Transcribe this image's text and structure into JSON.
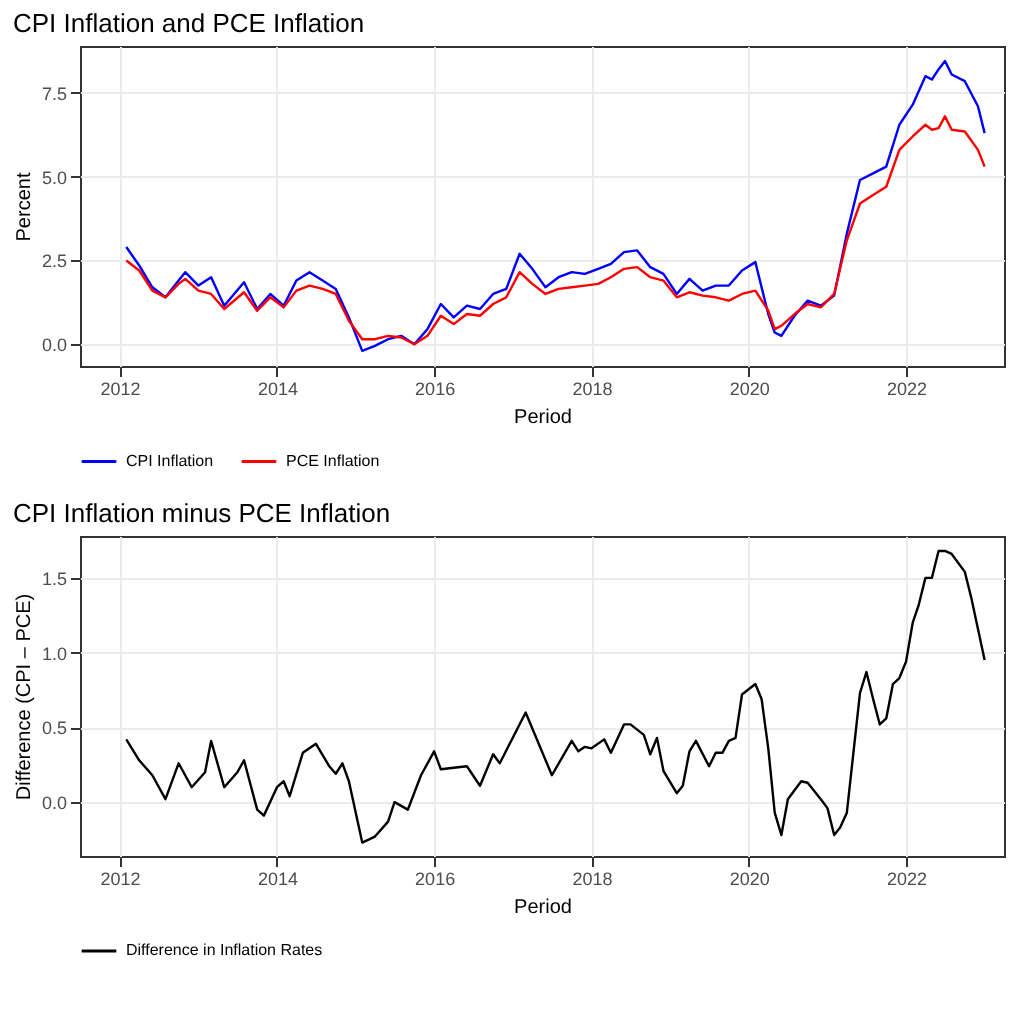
{
  "chart_data": [
    {
      "type": "line",
      "title": "CPI Inflation and PCE Inflation",
      "xlabel": "Period",
      "ylabel": "Percent",
      "x": [
        "2012-02",
        "2012-04",
        "2012-06",
        "2012-08",
        "2012-10",
        "2012-11",
        "2013-01",
        "2013-03",
        "2013-05",
        "2013-08",
        "2013-10",
        "2013-12",
        "2014-02",
        "2014-04",
        "2014-06",
        "2014-08",
        "2014-10",
        "2014-12",
        "2015-02",
        "2015-04",
        "2015-06",
        "2015-08",
        "2015-10",
        "2015-12",
        "2016-02",
        "2016-04",
        "2016-06",
        "2016-08",
        "2016-10",
        "2016-12",
        "2017-02",
        "2017-04",
        "2017-06",
        "2017-08",
        "2017-10",
        "2017-12",
        "2018-02",
        "2018-04",
        "2018-06",
        "2018-08",
        "2018-10",
        "2018-12",
        "2019-02",
        "2019-04",
        "2019-06",
        "2019-08",
        "2019-10",
        "2019-12",
        "2020-02",
        "2020-04",
        "2020-05",
        "2020-06",
        "2020-08",
        "2020-10",
        "2020-12",
        "2021-02",
        "2021-04",
        "2021-06",
        "2021-08",
        "2021-10",
        "2021-12",
        "2022-02",
        "2022-04",
        "2022-05",
        "2022-06",
        "2022-07",
        "2022-08",
        "2022-10",
        "2022-12",
        "2023-01"
      ],
      "series": [
        {
          "name": "CPI Inflation",
          "color": "#0000ff",
          "values": [
            2.9,
            2.35,
            1.7,
            1.4,
            1.9,
            2.15,
            1.75,
            2.0,
            1.15,
            1.85,
            1.05,
            1.5,
            1.15,
            1.9,
            2.15,
            1.9,
            1.65,
            0.8,
            -0.2,
            -0.05,
            0.15,
            0.25,
            0.0,
            0.45,
            1.2,
            0.8,
            1.15,
            1.05,
            1.5,
            1.65,
            2.7,
            2.25,
            1.7,
            2.0,
            2.15,
            2.1,
            2.25,
            2.4,
            2.75,
            2.8,
            2.3,
            2.1,
            1.5,
            1.95,
            1.6,
            1.75,
            1.75,
            2.2,
            2.45,
            0.9,
            0.35,
            0.25,
            0.85,
            1.3,
            1.15,
            1.45,
            3.3,
            4.9,
            5.1,
            5.3,
            6.55,
            7.15,
            8.0,
            7.9,
            8.2,
            8.45,
            8.05,
            7.85,
            7.1,
            6.3
          ]
        },
        {
          "name": "PCE Inflation",
          "color": "#ff0000",
          "values": [
            2.5,
            2.2,
            1.6,
            1.4,
            1.8,
            1.95,
            1.6,
            1.5,
            1.05,
            1.55,
            1.0,
            1.4,
            1.1,
            1.6,
            1.75,
            1.65,
            1.5,
            0.7,
            0.15,
            0.15,
            0.25,
            0.2,
            0.0,
            0.25,
            0.85,
            0.6,
            0.9,
            0.85,
            1.2,
            1.4,
            2.15,
            1.8,
            1.5,
            1.65,
            1.7,
            1.75,
            1.8,
            2.0,
            2.25,
            2.3,
            2.0,
            1.9,
            1.4,
            1.55,
            1.45,
            1.4,
            1.3,
            1.5,
            1.6,
            1.0,
            0.45,
            0.55,
            0.9,
            1.2,
            1.1,
            1.5,
            3.1,
            4.2,
            4.45,
            4.7,
            5.8,
            6.2,
            6.55,
            6.4,
            6.45,
            6.8,
            6.4,
            6.35,
            5.8,
            5.3
          ]
        }
      ],
      "xlim": [
        "2011-07",
        "2023-04"
      ],
      "xticks": [
        "2012",
        "2014",
        "2016",
        "2018",
        "2020",
        "2022"
      ],
      "ylim": [
        -0.65,
        8.9
      ],
      "yticks": [
        {
          "value": 0,
          "label": "0.0"
        },
        2.5,
        {
          "value": 5,
          "label": "5.0"
        },
        7.5
      ],
      "grid": true,
      "legend": "bottom"
    },
    {
      "type": "line",
      "title": "CPI Inflation minus PCE Inflation",
      "xlabel": "Period",
      "ylabel": "Difference (CPI – PCE)",
      "x": [
        "2012-02",
        "2012-04",
        "2012-06",
        "2012-08",
        "2012-10",
        "2012-12",
        "2013-02",
        "2013-03",
        "2013-05",
        "2013-07",
        "2013-08",
        "2013-10",
        "2013-11",
        "2014-01",
        "2014-02",
        "2014-03",
        "2014-05",
        "2014-07",
        "2014-09",
        "2014-10",
        "2014-11",
        "2014-12",
        "2015-02",
        "2015-04",
        "2015-06",
        "2015-07",
        "2015-09",
        "2015-11",
        "2016-01",
        "2016-02",
        "2016-04",
        "2016-06",
        "2016-08",
        "2016-10",
        "2016-11",
        "2017-03",
        "2017-07",
        "2017-10",
        "2017-11",
        "2017-12",
        "2018-01",
        "2018-03",
        "2018-04",
        "2018-06",
        "2018-07",
        "2018-09",
        "2018-10",
        "2018-11",
        "2018-12",
        "2019-02",
        "2019-03",
        "2019-04",
        "2019-05",
        "2019-07",
        "2019-08",
        "2019-09",
        "2019-10",
        "2019-11",
        "2019-12",
        "2020-02",
        "2020-03",
        "2020-04",
        "2020-05",
        "2020-06",
        "2020-07",
        "2020-09",
        "2020-10",
        "2020-12",
        "2021-01",
        "2021-02",
        "2021-03",
        "2021-04",
        "2021-06",
        "2021-07",
        "2021-08",
        "2021-09",
        "2021-10",
        "2021-11",
        "2021-12",
        "2022-01",
        "2022-02",
        "2022-03",
        "2022-04",
        "2022-05",
        "2022-06",
        "2022-07",
        "2022-08",
        "2022-10",
        "2022-11",
        "2023-01"
      ],
      "series": [
        {
          "name": "Difference in Inflation Rates",
          "color": "#000000",
          "values": [
            0.42,
            0.28,
            0.18,
            0.02,
            0.26,
            0.1,
            0.2,
            0.41,
            0.1,
            0.2,
            0.28,
            -0.05,
            -0.09,
            0.1,
            0.14,
            0.04,
            0.33,
            0.39,
            0.24,
            0.19,
            0.26,
            0.14,
            -0.27,
            -0.23,
            -0.13,
            0.0,
            -0.05,
            0.18,
            0.34,
            0.22,
            0.23,
            0.24,
            0.11,
            0.32,
            0.26,
            0.6,
            0.18,
            0.41,
            0.34,
            0.37,
            0.36,
            0.42,
            0.33,
            0.52,
            0.52,
            0.45,
            0.32,
            0.43,
            0.21,
            0.06,
            0.11,
            0.34,
            0.41,
            0.24,
            0.33,
            0.33,
            0.41,
            0.43,
            0.72,
            0.79,
            0.69,
            0.36,
            -0.07,
            -0.22,
            0.02,
            0.14,
            0.13,
            0.02,
            -0.04,
            -0.22,
            -0.17,
            -0.07,
            0.73,
            0.87,
            0.69,
            0.52,
            0.56,
            0.79,
            0.83,
            0.94,
            1.2,
            1.32,
            1.5,
            1.5,
            1.68,
            1.68,
            1.66,
            1.54,
            1.36,
            0.95
          ]
        }
      ],
      "xlim": [
        "2011-07",
        "2023-04"
      ],
      "xticks": [
        "2012",
        "2014",
        "2016",
        "2018",
        "2020",
        "2022"
      ],
      "ylim": [
        -0.36,
        1.78
      ],
      "yticks": [
        {
          "value": 0,
          "label": "0.0"
        },
        0.5,
        {
          "value": 1,
          "label": "1.0"
        },
        1.5
      ],
      "grid": true,
      "legend": "bottom"
    }
  ]
}
